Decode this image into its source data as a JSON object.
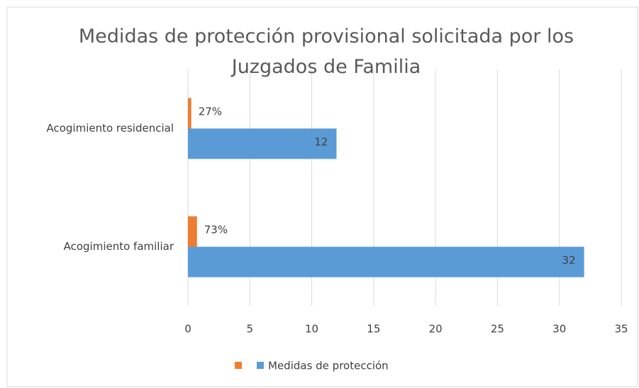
{
  "chart_data": {
    "type": "barh",
    "title": "Medidas de protección provisional solicitada por los Juzgados de Familia",
    "categories": [
      "Acogimiento residencial",
      "Acogimiento familiar"
    ],
    "series": [
      {
        "color": "#ed7d31",
        "values": [
          0.27,
          0.73
        ],
        "value_labels": [
          "27%",
          "73%"
        ]
      },
      {
        "name": "Medidas de protección",
        "color": "#5b9bd5",
        "values": [
          12,
          32
        ]
      }
    ],
    "xlim": [
      0,
      35
    ],
    "xticks": [
      0,
      5,
      10,
      15,
      20,
      25,
      30,
      35
    ],
    "grid": true,
    "legend": "bottom"
  }
}
